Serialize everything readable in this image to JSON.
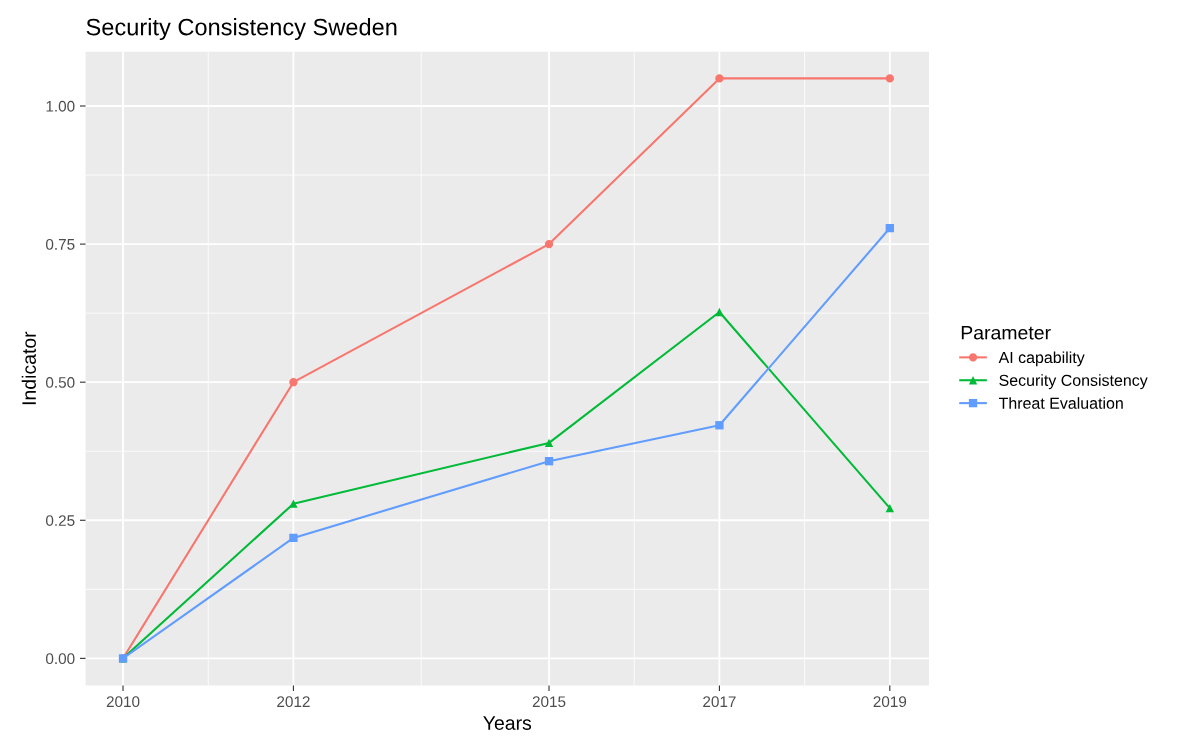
{
  "chart_data": {
    "type": "line",
    "title": "Security Consistency Sweden",
    "xlabel": "Years",
    "ylabel": "Indicator",
    "legend_title": "Parameter",
    "x": [
      2010,
      2012,
      2015,
      2017,
      2019
    ],
    "series": [
      {
        "name": "AI capability",
        "color": "#f8766d",
        "marker": "circle",
        "values": [
          0,
          0.5,
          0.75,
          1.05,
          1.05
        ]
      },
      {
        "name": "Security Consistency",
        "color": "#00ba38",
        "marker": "triangle",
        "values": [
          0,
          0.28,
          0.39,
          0.627,
          0.272
        ]
      },
      {
        "name": "Threat Evaluation",
        "color": "#619cff",
        "marker": "square",
        "values": [
          0,
          0.218,
          0.357,
          0.422,
          0.779
        ]
      }
    ],
    "xlim": [
      2009.56,
      2019.46
    ],
    "xticks": [
      2010,
      2012,
      2015,
      2017,
      2019
    ],
    "ylim": [
      -0.049,
      1.098
    ],
    "yticks": [
      {
        "value": 0,
        "label": "0.00"
      },
      {
        "value": 0.25,
        "label": "0.25"
      },
      {
        "value": 0.5,
        "label": "0.50"
      },
      {
        "value": 0.75,
        "label": "0.75"
      },
      {
        "value": 1,
        "label": "1.00"
      }
    ],
    "grid": true,
    "legend": "right",
    "line_style": "solid"
  }
}
